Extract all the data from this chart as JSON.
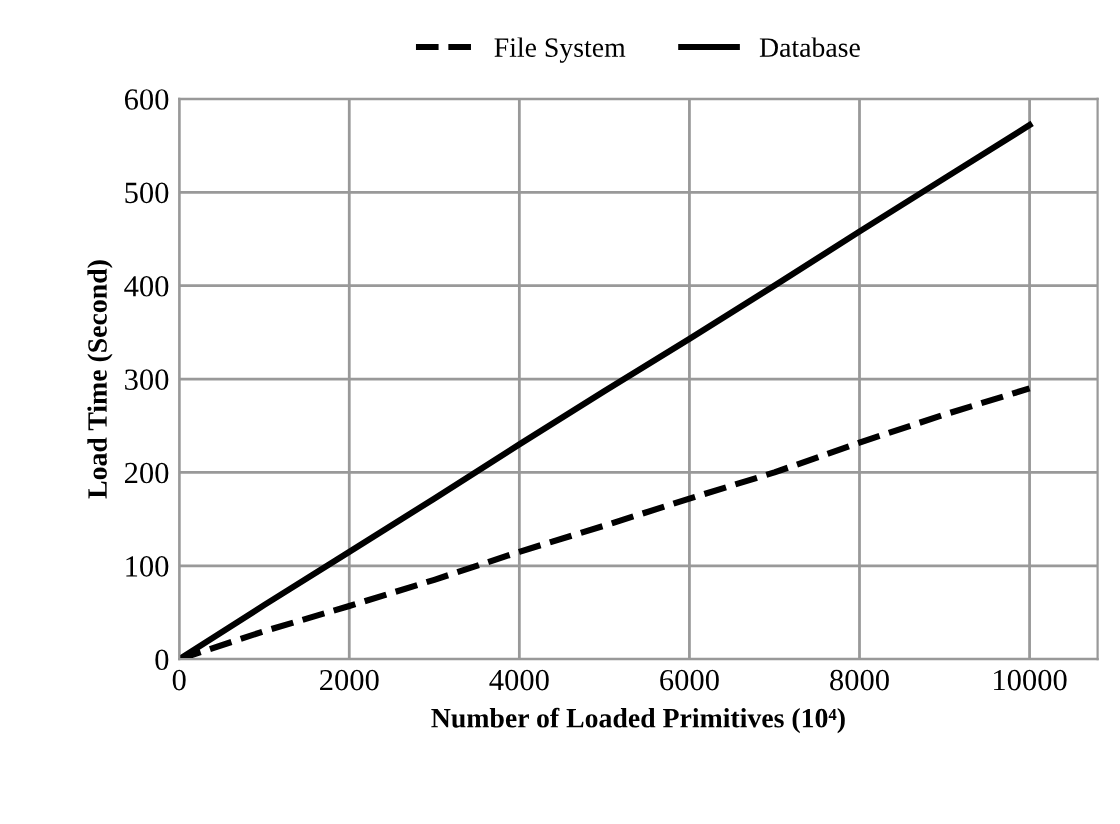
{
  "chart_data": {
    "type": "line",
    "xlabel": "Number of Loaded Primitives (10⁴)",
    "ylabel": "Load Time (Second)",
    "x": [
      0,
      1000,
      2000,
      3000,
      4000,
      5000,
      6000,
      7000,
      8000,
      9000,
      10000
    ],
    "series": [
      {
        "name": "File System",
        "color": "#000000",
        "line_style": "dashed",
        "values": [
          0,
          30,
          57,
          85,
          115,
          143,
          172,
          200,
          232,
          262,
          290
        ]
      },
      {
        "name": "Database",
        "color": "#000000",
        "line_style": "solid",
        "values": [
          0,
          58,
          115,
          172,
          230,
          287,
          343,
          400,
          458,
          515,
          572
        ]
      }
    ],
    "xlim": [
      0,
      10800
    ],
    "ylim": [
      0,
      600
    ],
    "xticks": [
      0,
      2000,
      4000,
      6000,
      8000,
      10000
    ],
    "yticks": [
      0,
      100,
      200,
      300,
      400,
      500,
      600
    ],
    "grid": true,
    "legend": "top",
    "marker": "none"
  }
}
